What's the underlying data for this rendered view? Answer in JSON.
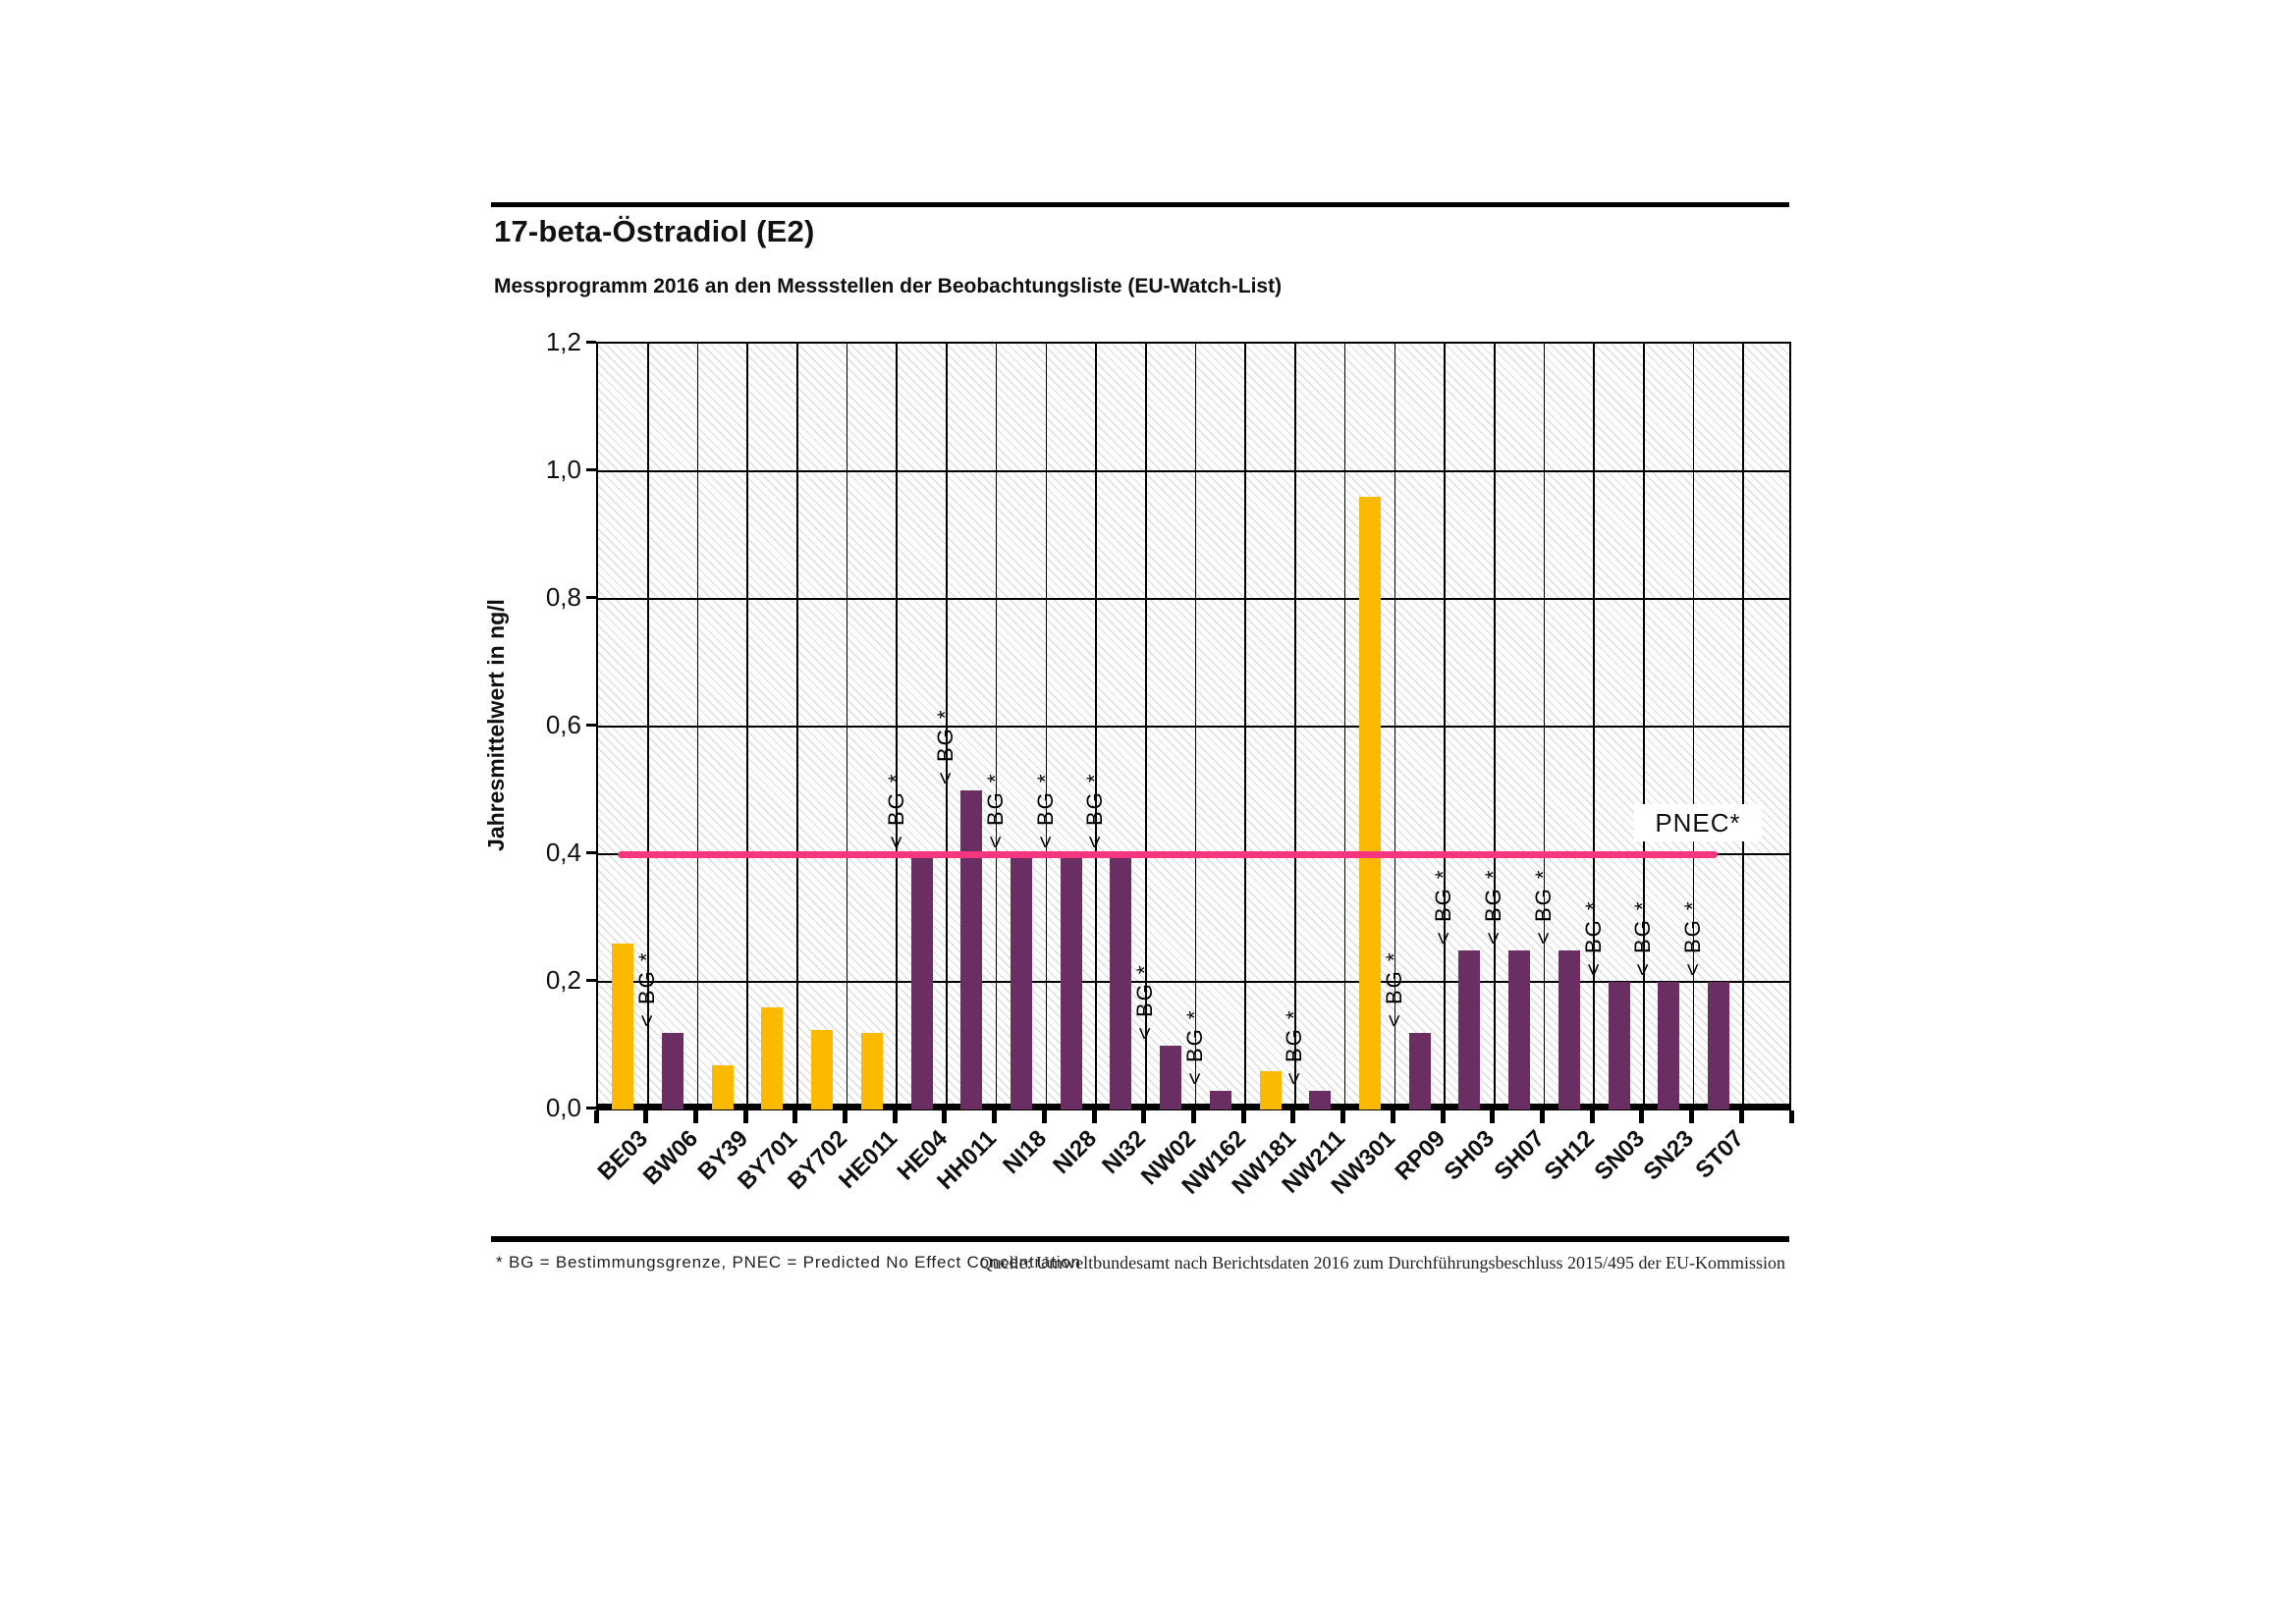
{
  "header": {
    "title": "17-beta-Östradiol (E2)",
    "subtitle": "Messprogramm 2016 an den Messstellen der Beobachtungsliste (EU-Watch-List)"
  },
  "colors": {
    "gold": "#FBBA00",
    "purple": "#6A2E62",
    "pnec_line": "#F6367E",
    "grid": "#000000",
    "hatch": "#DCDCDC"
  },
  "pnec": {
    "label": "PNEC*",
    "value": 0.4
  },
  "footnotes": {
    "left": "* BG = Bestimmungsgrenze, PNEC = Predicted No Effect Concentration",
    "right": "Quelle: Umweltbundesamt nach Berichtsdaten 2016 zum Durchführungsbeschluss 2015/495 der EU-Kommission"
  },
  "chart_data": {
    "type": "bar",
    "title": "17-beta-Östradiol (E2)",
    "subtitle": "Messprogramm 2016 an den Messstellen der Beobachtungsliste (EU-Watch-List)",
    "xlabel": "",
    "ylabel": "Jahresmittelwert in ng/l",
    "ylim": [
      0,
      1.2
    ],
    "y_tick_step": 0.2,
    "y_tick_labels": [
      "0,0",
      "0,2",
      "0,4",
      "0,6",
      "0,8",
      "1,0",
      "1,2"
    ],
    "grid": true,
    "legend": "none",
    "x_tick_rotation": 45,
    "reference_line": {
      "label": "PNEC*",
      "value": 0.4
    },
    "categories": [
      "BE03",
      "BW06",
      "BY39",
      "BY701",
      "BY702",
      "HE011",
      "HE04",
      "HH011",
      "NI18",
      "NI28",
      "NI32",
      "NW02",
      "NW162",
      "NW181",
      "NW211",
      "NW301",
      "RP09",
      "SH03",
      "SH07",
      "SH12",
      "SN03",
      "SN23",
      "ST07"
    ],
    "values": [
      0.26,
      0.12,
      0.07,
      0.16,
      0.125,
      0.12,
      0.4,
      0.5,
      0.4,
      0.4,
      0.4,
      0.1,
      0.03,
      0.06,
      0.03,
      0.96,
      0.12,
      0.25,
      0.25,
      0.25,
      0.2,
      0.2,
      0.2
    ],
    "bar_colors": [
      "gold",
      "purple",
      "gold",
      "gold",
      "gold",
      "gold",
      "purple",
      "purple",
      "purple",
      "purple",
      "purple",
      "purple",
      "purple",
      "gold",
      "purple",
      "gold",
      "purple",
      "purple",
      "purple",
      "purple",
      "purple",
      "purple",
      "purple"
    ],
    "annotations": [
      "",
      "< BG *",
      "",
      "",
      "",
      "",
      "< BG *",
      "< BG *",
      "< BG *",
      "< BG *",
      "< BG *",
      "< BG *",
      "< BG *",
      "",
      "< BG *",
      "",
      "< BG *",
      "< BG *",
      "< BG *",
      "< BG *",
      "< BG *",
      "< BG *",
      "< BG *"
    ]
  }
}
